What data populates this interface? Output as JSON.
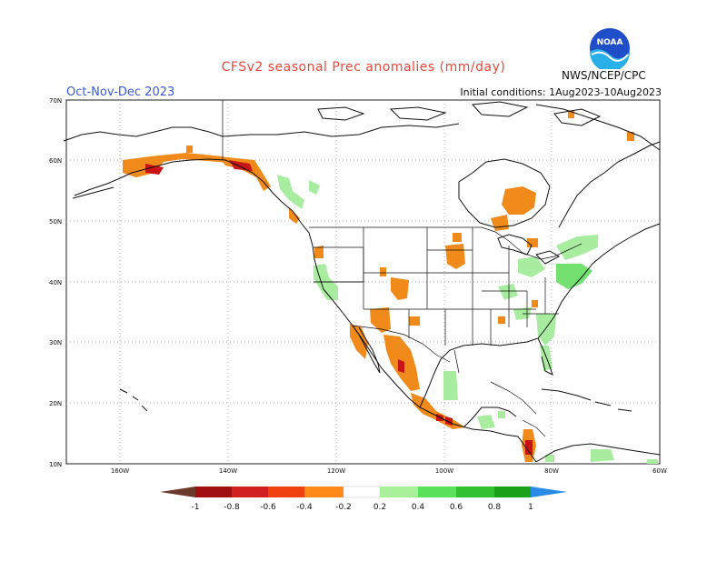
{
  "title": "CFSv2 seasonal Prec anomalies (mm/day)",
  "season": "Oct-Nov-Dec 2023",
  "initial_conditions": "Initial conditions: 1Aug2023-10Aug2023",
  "agency": "NWS/NCEP/CPC",
  "logo_text": "NOAA",
  "lat_labels": [
    "70N",
    "60N",
    "50N",
    "40N",
    "30N",
    "20N",
    "10N"
  ],
  "lon_labels": [
    "160W",
    "140W",
    "120W",
    "100W",
    "80W",
    "60W"
  ],
  "colorbar": {
    "labels": [
      "-1",
      "-0.8",
      "-0.6",
      "-0.4",
      "-0.2",
      "0.2",
      "0.4",
      "0.6",
      "0.8",
      "1"
    ],
    "colors": [
      "#6b3a2a",
      "#a01010",
      "#d22020",
      "#f04010",
      "#ff8a1a",
      "#ffa020",
      "#ffffff",
      "#a8f09a",
      "#5ae05a",
      "#30c030",
      "#18a018",
      "#2a8ae8"
    ]
  },
  "map_colors": {
    "dry_strong": "#c81414",
    "dry": "#f08a1a",
    "dry_light": "#f4a030",
    "wet_light": "#a8ecA0",
    "wet": "#74e070"
  }
}
